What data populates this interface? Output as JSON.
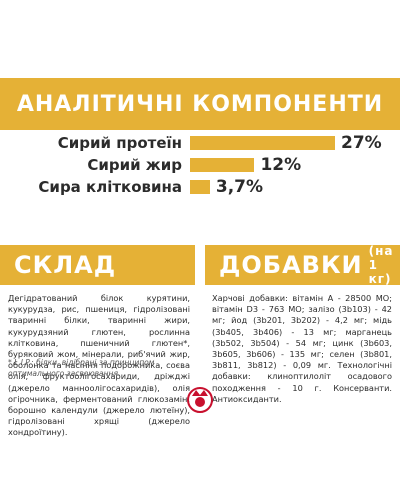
{
  "analysis": {
    "title": "АНАЛІТИЧНІ КОМПОНЕНТИ",
    "items": [
      {
        "name": "Сирий протеїн",
        "value": 27,
        "value_label": "27%"
      },
      {
        "name": "Сирий жир",
        "value": 12,
        "value_label": "12%"
      },
      {
        "name": "Сира клітковина",
        "value": 3.7,
        "value_label": "3,7%"
      }
    ]
  },
  "composition": {
    "title": "СКЛАД",
    "text": "Дегідратований білок курятини, кукурудза, рис, пшениця, гідролізовані тваринні білки, тваринні жири, кукурудзяний глютен, рослинна клітковина, пшеничний глютен*, буряковий жом, мінерали, риб'ячий жир, оболонка та насіння подорожника, соєва олія, фруктоолігосахариди, дріжджі (джерело манноолігосахаридів), олія огірочника, ферментований глюкозамін, борошно календули (джерело лютеїну), гідролізовані хрящі (джерело хондроїтину)."
  },
  "additives": {
    "title": "ДОБАВКИ",
    "subtitle": "(на 1 кг)",
    "text": "Харчові добавки: вітамін А - 28500 МО; вітамін D3 - 763 МО; залізо (3b103) - 42 мг; йод (3b201, 3b202) - 4,2 мг; мідь (3b405, 3b406) - 13 мг; марганець (3b502, 3b504) - 54 мг; цинк (3b603, 3b605, 3b606) - 135 мг; селен (3b801, 3b811, 3b812) - 0,09 мг. Технологічні добавки: клиноптилоліт осадового походження - 10 г. Консерванти. Антиоксиданти."
  },
  "footnote": "* L.I.P.: білки, відібрані за принципом оптимального засвоювання."
}
